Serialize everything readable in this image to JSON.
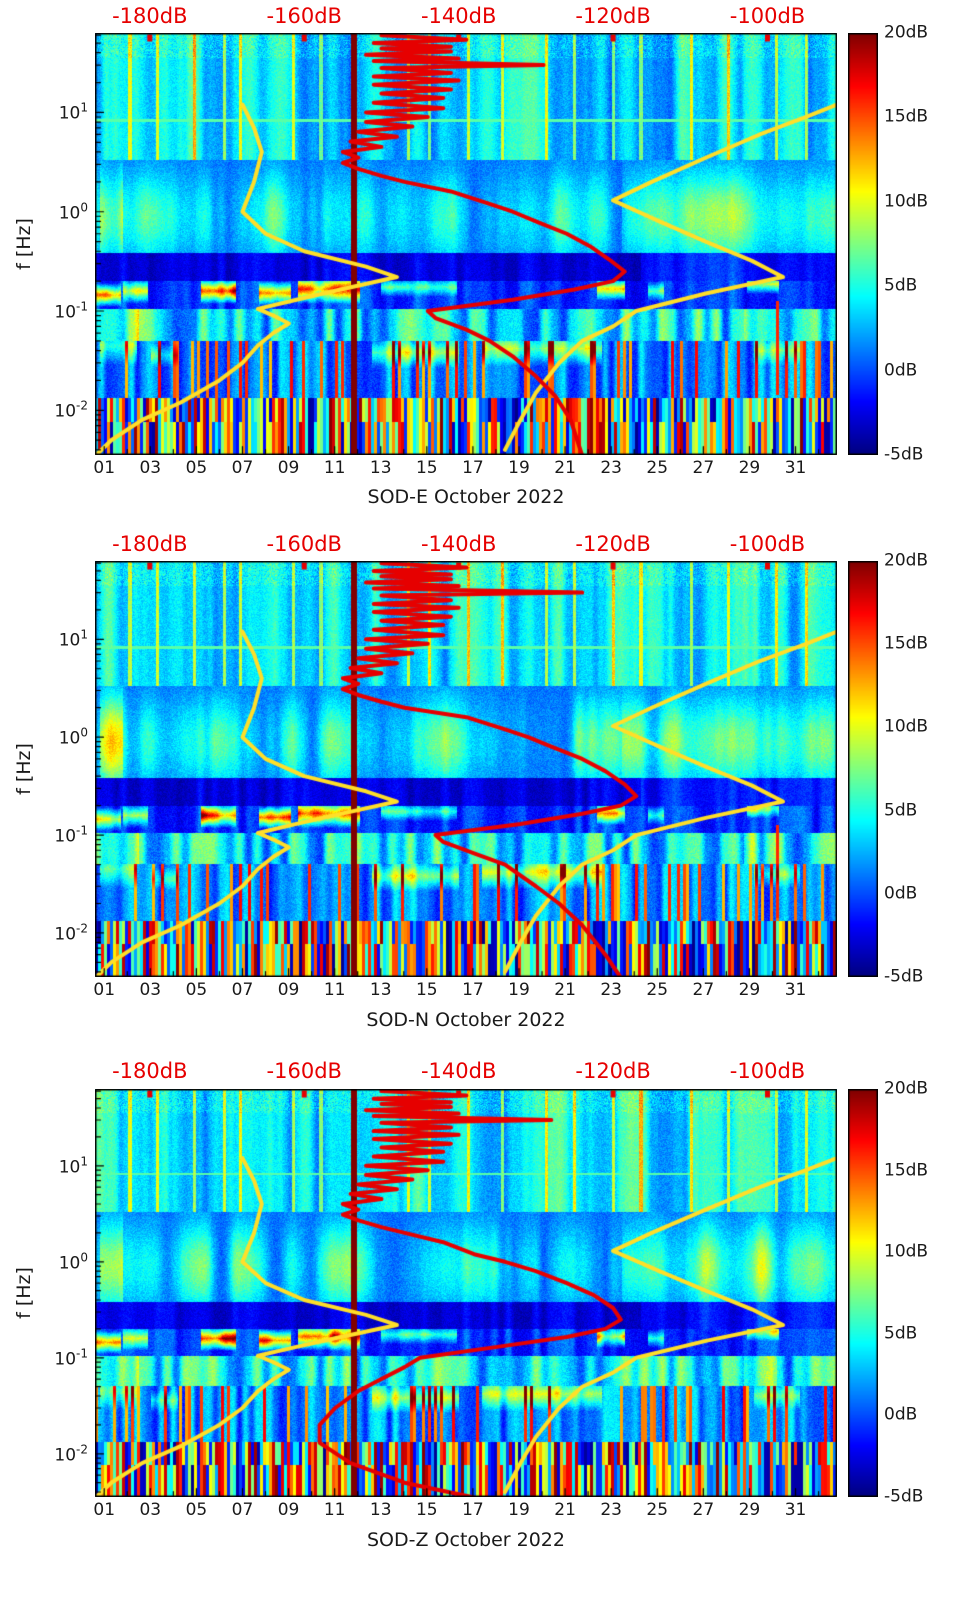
{
  "chart_data": {
    "type": "heatmap",
    "description": "Three stacked probability-density spectrograms (power spectral density deviation in dB vs day-of-month and frequency) for station SOD components E, N, Z, October 2022, with yellow Peterson low/high noise-model curves and a red median PSD curve plotted against the top dB axis.",
    "panels": [
      {
        "name": "SOD-E",
        "xlabel": "SOD-E October 2022",
        "seed": 101,
        "spike_dB": -129,
        "has_minor_event": true,
        "red_low_dB_vs_Hz": [
          [
            1.6,
            -141
          ],
          [
            1.2,
            -136
          ],
          [
            1.0,
            -133
          ],
          [
            0.8,
            -130
          ],
          [
            0.6,
            -126
          ],
          [
            0.45,
            -123
          ],
          [
            0.33,
            -120.5
          ],
          [
            0.25,
            -118.5
          ],
          [
            0.2,
            -120
          ],
          [
            0.165,
            -125
          ],
          [
            0.13,
            -133
          ],
          [
            0.1,
            -144
          ],
          [
            0.085,
            -143
          ],
          [
            0.065,
            -139
          ],
          [
            0.05,
            -136
          ],
          [
            0.035,
            -133
          ],
          [
            0.022,
            -130
          ],
          [
            0.014,
            -127.5
          ],
          [
            0.008,
            -125.5
          ],
          [
            0.0035,
            -124
          ]
        ]
      },
      {
        "name": "SOD-N",
        "xlabel": "SOD-N October 2022",
        "seed": 202,
        "spike_dB": -124,
        "has_minor_event": true,
        "red_low_dB_vs_Hz": [
          [
            1.6,
            -139
          ],
          [
            1.2,
            -134
          ],
          [
            1.0,
            -131
          ],
          [
            0.8,
            -128
          ],
          [
            0.6,
            -124
          ],
          [
            0.45,
            -121
          ],
          [
            0.33,
            -118.5
          ],
          [
            0.25,
            -117
          ],
          [
            0.2,
            -119
          ],
          [
            0.165,
            -124
          ],
          [
            0.13,
            -132
          ],
          [
            0.1,
            -143
          ],
          [
            0.085,
            -142
          ],
          [
            0.065,
            -138
          ],
          [
            0.05,
            -134
          ],
          [
            0.03,
            -130
          ],
          [
            0.02,
            -127
          ],
          [
            0.012,
            -124
          ],
          [
            0.006,
            -121
          ],
          [
            0.0035,
            -119
          ]
        ]
      },
      {
        "name": "SOD-Z",
        "xlabel": "SOD-Z October 2022",
        "seed": 303,
        "spike_dB": -128,
        "has_minor_event": false,
        "red_low_dB_vs_Hz": [
          [
            1.6,
            -142
          ],
          [
            1.2,
            -138
          ],
          [
            1.0,
            -134
          ],
          [
            0.8,
            -130
          ],
          [
            0.6,
            -126
          ],
          [
            0.45,
            -122.5
          ],
          [
            0.33,
            -120
          ],
          [
            0.25,
            -119
          ],
          [
            0.2,
            -121
          ],
          [
            0.165,
            -126
          ],
          [
            0.13,
            -135
          ],
          [
            0.1,
            -145
          ],
          [
            0.08,
            -147
          ],
          [
            0.06,
            -150
          ],
          [
            0.045,
            -153
          ],
          [
            0.03,
            -156
          ],
          [
            0.02,
            -158
          ],
          [
            0.013,
            -158
          ],
          [
            0.008,
            -154
          ],
          [
            0.005,
            -147
          ],
          [
            0.0035,
            -138
          ]
        ]
      }
    ],
    "x_axis": {
      "tick_labels": [
        "01",
        "03",
        "05",
        "07",
        "09",
        "11",
        "13",
        "15",
        "17",
        "19",
        "21",
        "23",
        "25",
        "27",
        "29",
        "31"
      ],
      "tick_days": [
        1,
        3,
        5,
        7,
        9,
        11,
        13,
        15,
        17,
        19,
        21,
        23,
        25,
        27,
        29,
        31
      ],
      "range_days": [
        0.6,
        32.8
      ]
    },
    "y_axis": {
      "label": "f [Hz]",
      "tick_exponents": [
        1,
        0,
        -1,
        -2
      ],
      "range_exp": [
        -2.45,
        1.8
      ]
    },
    "top_axis": {
      "tick_labels": [
        "-180dB",
        "-160dB",
        "-140dB",
        "-120dB",
        "-100dB"
      ],
      "tick_values": [
        -180,
        -160,
        -140,
        -120,
        -100
      ],
      "range_dB": [
        -187.1,
        -91
      ]
    },
    "colorbar": {
      "tick_labels": [
        "20dB",
        "15dB",
        "10dB",
        "5dB",
        "0dB",
        "-5dB"
      ],
      "tick_values": [
        20,
        15,
        10,
        5,
        0,
        -5
      ],
      "range_dB": [
        -5,
        20
      ]
    },
    "overlays": {
      "yellow_low_model_dB_vs_Hz": [
        [
          0.0035,
          -187
        ],
        [
          0.005,
          -185
        ],
        [
          0.008,
          -181
        ],
        [
          0.012,
          -176
        ],
        [
          0.02,
          -171
        ],
        [
          0.03,
          -168
        ],
        [
          0.045,
          -166
        ],
        [
          0.06,
          -164
        ],
        [
          0.075,
          -162
        ],
        [
          0.09,
          -164
        ],
        [
          0.105,
          -166
        ],
        [
          0.13,
          -161
        ],
        [
          0.16,
          -156
        ],
        [
          0.22,
          -148
        ],
        [
          0.28,
          -152
        ],
        [
          0.4,
          -160
        ],
        [
          0.6,
          -165
        ],
        [
          1.0,
          -168
        ],
        [
          2,
          -166.5
        ],
        [
          4,
          -165.5
        ],
        [
          7,
          -166.5
        ],
        [
          12,
          -168
        ]
      ],
      "yellow_high_model_dB_vs_Hz": [
        [
          0.004,
          -134
        ],
        [
          0.008,
          -132
        ],
        [
          0.015,
          -130
        ],
        [
          0.03,
          -127
        ],
        [
          0.05,
          -124
        ],
        [
          0.07,
          -120
        ],
        [
          0.1,
          -117
        ],
        [
          0.15,
          -108
        ],
        [
          0.22,
          -98
        ],
        [
          0.32,
          -102
        ],
        [
          0.5,
          -108
        ],
        [
          0.8,
          -114
        ],
        [
          1.3,
          -120
        ],
        [
          2,
          -115
        ],
        [
          3.5,
          -108
        ],
        [
          6,
          -101
        ],
        [
          9,
          -95
        ],
        [
          12,
          -91
        ]
      ],
      "red_cluster_dB_vs_Hz": [
        [
          60,
          -150
        ],
        [
          54,
          -139
        ],
        [
          50,
          -151
        ],
        [
          46,
          -141
        ],
        [
          44,
          -150
        ],
        [
          41,
          -141
        ],
        [
          38,
          -152
        ],
        [
          35,
          -140
        ],
        [
          33,
          -151
        ],
        [
          30,
          -138
        ],
        [
          28,
          -150
        ],
        [
          25,
          -141
        ],
        [
          23,
          -151
        ],
        [
          21,
          -140
        ],
        [
          19,
          -151
        ],
        [
          17,
          -141
        ],
        [
          15.5,
          -150
        ],
        [
          14,
          -142
        ],
        [
          12.5,
          -151
        ],
        [
          11,
          -142
        ],
        [
          10,
          -152
        ],
        [
          9,
          -144
        ],
        [
          8,
          -152
        ],
        [
          7.2,
          -146
        ],
        [
          6.4,
          -153
        ],
        [
          5.7,
          -148
        ],
        [
          5.1,
          -154
        ],
        [
          4.5,
          -150
        ],
        [
          4,
          -155
        ],
        [
          3.5,
          -153
        ],
        [
          3.1,
          -155
        ],
        [
          2.7,
          -153
        ],
        [
          2.3,
          -150
        ],
        [
          2,
          -147
        ]
      ],
      "spike_freq_Hz": 30,
      "event_line_day": 11.85,
      "minor_event": {
        "day": 30.25,
        "exp_range": [
          -1.85,
          -0.9
        ]
      }
    },
    "spectrogram_features": {
      "hot_spots": [
        [
          0.6,
          1.7,
          -0.84,
          0.12,
          18
        ],
        [
          1.8,
          2.9,
          -0.8,
          0.13,
          13
        ],
        [
          5.2,
          6.7,
          -0.8,
          0.13,
          23
        ],
        [
          7.7,
          9.1,
          -0.82,
          0.12,
          20
        ],
        [
          9.4,
          12.1,
          -0.78,
          0.15,
          22
        ],
        [
          13.0,
          16.3,
          -0.76,
          0.1,
          9
        ],
        [
          22.4,
          23.6,
          -0.78,
          0.12,
          16
        ],
        [
          24.6,
          25.3,
          -0.8,
          0.1,
          10
        ],
        [
          28.9,
          30.3,
          -0.73,
          0.1,
          12
        ]
      ],
      "warm_patches": [
        [
          0.8,
          2.4,
          -1.35,
          0.2,
          8
        ],
        [
          3.0,
          4.2,
          -1.45,
          0.12,
          6
        ],
        [
          12.6,
          16.4,
          -1.42,
          0.16,
          9
        ],
        [
          17.4,
          22.6,
          -1.38,
          0.18,
          10
        ],
        [
          29.2,
          31.2,
          -1.4,
          0.15,
          7
        ]
      ],
      "bright_vertical_lines": [
        2.1,
        3.3,
        4.9,
        6.2,
        6.9,
        9.2,
        10.4,
        14.2,
        15.1,
        16.8,
        18.3,
        20.2,
        21.4,
        23.1,
        24.3,
        26.5,
        28.1,
        30.2,
        31.5
      ]
    }
  },
  "colors": {
    "curve_yellow": "#ffdf29",
    "curve_red": "#e60000",
    "top_label_red": "#e60000",
    "axis_text": "#1a1a1a"
  }
}
